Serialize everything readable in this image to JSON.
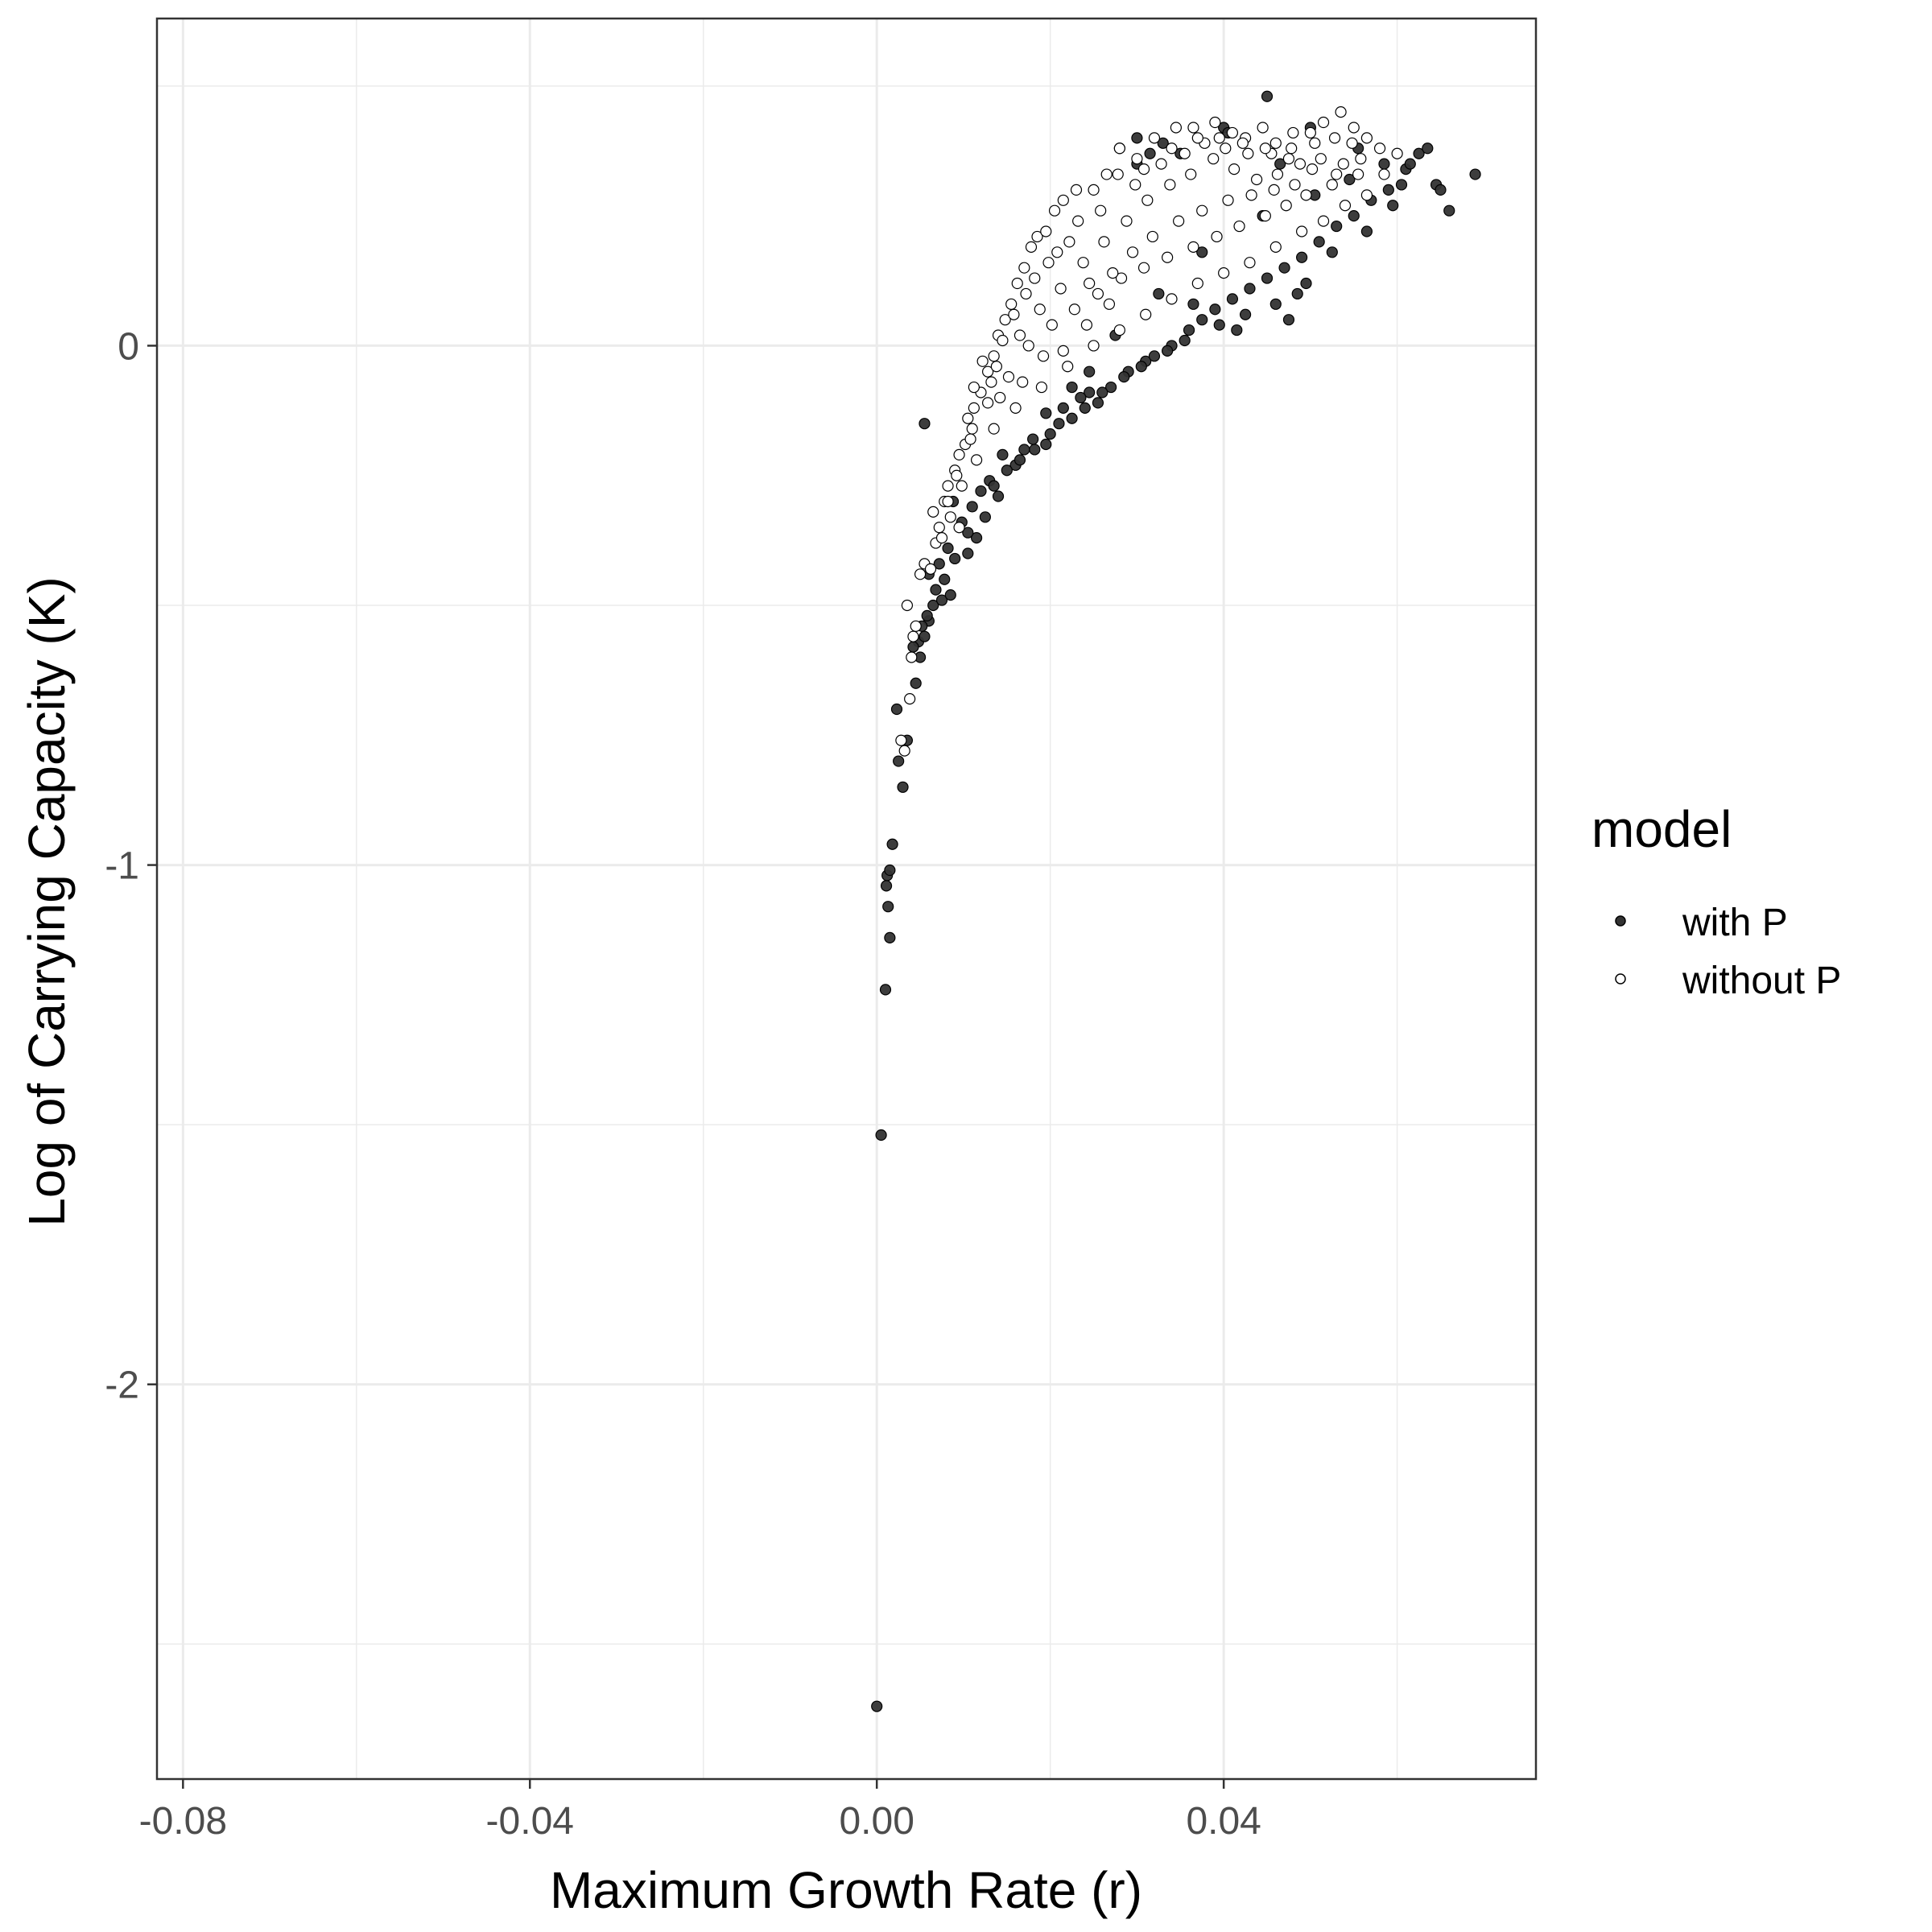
{
  "chart_data": {
    "type": "scatter",
    "title": "",
    "xlabel": "Maximum Growth Rate (r)",
    "ylabel": "Log of Carrying Capacity (K)",
    "xlim": [
      -0.083,
      0.076
    ],
    "ylim": [
      -2.76,
      0.63
    ],
    "x_ticks": [
      -0.08,
      -0.04,
      0.0,
      0.04
    ],
    "x_tick_labels": [
      "-0.08",
      "-0.04",
      "0.00",
      "0.04"
    ],
    "y_ticks": [
      0,
      -1,
      -2
    ],
    "y_tick_labels": [
      "0",
      "-1",
      "-2"
    ],
    "grid": true,
    "legend_position": "right",
    "legend": {
      "title": "model",
      "entries": [
        "with P",
        "without P"
      ]
    },
    "colors": {
      "with P": "#333333",
      "without P": "#ffffff",
      "outline": "#000000",
      "grid": "#ebebeb",
      "panel_border": "#333333"
    },
    "series": [
      {
        "name": "with P",
        "points": [
          [
            0.0,
            -2.62
          ],
          [
            0.0005,
            -1.52
          ],
          [
            0.001,
            -1.24
          ],
          [
            0.0015,
            -1.14
          ],
          [
            0.0013,
            -1.08
          ],
          [
            0.0011,
            -1.04
          ],
          [
            0.0012,
            -1.02
          ],
          [
            0.0015,
            -1.01
          ],
          [
            0.0018,
            -0.96
          ],
          [
            0.003,
            -0.85
          ],
          [
            0.0025,
            -0.8
          ],
          [
            0.0035,
            -0.76
          ],
          [
            0.0023,
            -0.7
          ],
          [
            0.0045,
            -0.65
          ],
          [
            0.005,
            -0.6
          ],
          [
            0.0048,
            -0.57
          ],
          [
            0.0055,
            -0.56
          ],
          [
            0.006,
            -0.53
          ],
          [
            0.0065,
            -0.5
          ],
          [
            0.0075,
            -0.49
          ],
          [
            0.0085,
            -0.48
          ],
          [
            0.006,
            -0.44
          ],
          [
            0.0072,
            -0.42
          ],
          [
            0.009,
            -0.41
          ],
          [
            0.0105,
            -0.4
          ],
          [
            0.0115,
            -0.37
          ],
          [
            0.0098,
            -0.34
          ],
          [
            0.0125,
            -0.33
          ],
          [
            0.0088,
            -0.3
          ],
          [
            0.014,
            -0.29
          ],
          [
            0.016,
            -0.23
          ],
          [
            0.0182,
            -0.2
          ],
          [
            0.0195,
            -0.19
          ],
          [
            0.0055,
            -0.15
          ],
          [
            0.021,
            -0.15
          ],
          [
            0.0225,
            -0.14
          ],
          [
            0.024,
            -0.12
          ],
          [
            0.0255,
            -0.11
          ],
          [
            0.0245,
            -0.09
          ],
          [
            0.027,
            -0.08
          ],
          [
            0.029,
            -0.05
          ],
          [
            0.031,
            -0.03
          ],
          [
            0.032,
            -0.02
          ],
          [
            0.034,
            0.0
          ],
          [
            0.036,
            0.03
          ],
          [
            0.0375,
            0.05
          ],
          [
            0.039,
            0.07
          ],
          [
            0.041,
            0.09
          ],
          [
            0.043,
            0.11
          ],
          [
            0.045,
            0.13
          ],
          [
            0.047,
            0.15
          ],
          [
            0.049,
            0.17
          ],
          [
            0.051,
            0.2
          ],
          [
            0.053,
            0.23
          ],
          [
            0.055,
            0.25
          ],
          [
            0.057,
            0.28
          ],
          [
            0.059,
            0.3
          ],
          [
            0.061,
            0.34
          ],
          [
            0.0625,
            0.37
          ],
          [
            0.0645,
            0.31
          ],
          [
            0.066,
            0.26
          ],
          [
            0.069,
            0.33
          ],
          [
            0.0635,
            0.38
          ],
          [
            0.065,
            0.3
          ],
          [
            0.045,
            0.48
          ],
          [
            0.04,
            0.42
          ],
          [
            0.035,
            0.37
          ],
          [
            0.03,
            0.35
          ],
          [
            0.028,
            0.38
          ],
          [
            0.03,
            0.4
          ],
          [
            0.033,
            0.39
          ],
          [
            0.0315,
            0.37
          ],
          [
            0.0405,
            0.41
          ],
          [
            0.0465,
            0.35
          ],
          [
            0.05,
            0.42
          ],
          [
            0.0555,
            0.38
          ],
          [
            0.0585,
            0.35
          ],
          [
            0.0605,
            0.31
          ],
          [
            0.0565,
            0.22
          ],
          [
            0.0525,
            0.18
          ],
          [
            0.0485,
            0.1
          ],
          [
            0.046,
            0.08
          ],
          [
            0.0425,
            0.06
          ],
          [
            0.0395,
            0.04
          ],
          [
            0.0355,
            0.01
          ],
          [
            0.0335,
            -0.01
          ],
          [
            0.0305,
            -0.04
          ],
          [
            0.0285,
            -0.06
          ],
          [
            0.026,
            -0.09
          ],
          [
            0.0235,
            -0.1
          ],
          [
            0.0215,
            -0.12
          ],
          [
            0.02,
            -0.17
          ],
          [
            0.018,
            -0.18
          ],
          [
            0.0165,
            -0.22
          ],
          [
            0.015,
            -0.24
          ],
          [
            0.013,
            -0.26
          ],
          [
            0.012,
            -0.28
          ],
          [
            0.011,
            -0.31
          ],
          [
            0.0135,
            -0.27
          ],
          [
            0.0195,
            -0.13
          ],
          [
            0.0275,
            0.02
          ],
          [
            0.0325,
            0.1
          ],
          [
            0.0375,
            0.18
          ],
          [
            0.0445,
            0.25
          ],
          [
            0.0505,
            0.29
          ],
          [
            0.0545,
            0.32
          ],
          [
            0.0595,
            0.27
          ],
          [
            0.0615,
            0.35
          ],
          [
            0.0495,
            0.12
          ],
          [
            0.0475,
            0.05
          ],
          [
            0.0415,
            0.03
          ],
          [
            0.0365,
            0.08
          ],
          [
            0.0245,
            -0.05
          ],
          [
            0.0225,
            -0.08
          ],
          [
            0.017,
            -0.2
          ],
          [
            0.0145,
            -0.21
          ],
          [
            0.0105,
            -0.36
          ],
          [
            0.0082,
            -0.39
          ],
          [
            0.0078,
            -0.45
          ],
          [
            0.0068,
            -0.47
          ],
          [
            0.0058,
            -0.52
          ],
          [
            0.0052,
            -0.54
          ],
          [
            0.0042,
            -0.58
          ]
        ]
      },
      {
        "name": "without P",
        "points": [
          [
            0.0028,
            -0.76
          ],
          [
            0.0032,
            -0.78
          ],
          [
            0.0038,
            -0.68
          ],
          [
            0.004,
            -0.6
          ],
          [
            0.0042,
            -0.56
          ],
          [
            0.0045,
            -0.54
          ],
          [
            0.0035,
            -0.5
          ],
          [
            0.005,
            -0.44
          ],
          [
            0.0055,
            -0.42
          ],
          [
            0.0062,
            -0.43
          ],
          [
            0.0068,
            -0.38
          ],
          [
            0.0072,
            -0.35
          ],
          [
            0.0065,
            -0.32
          ],
          [
            0.0078,
            -0.3
          ],
          [
            0.0082,
            -0.27
          ],
          [
            0.009,
            -0.24
          ],
          [
            0.0095,
            -0.21
          ],
          [
            0.0102,
            -0.19
          ],
          [
            0.011,
            -0.16
          ],
          [
            0.0112,
            -0.12
          ],
          [
            0.012,
            -0.09
          ],
          [
            0.0128,
            -0.05
          ],
          [
            0.0135,
            -0.02
          ],
          [
            0.014,
            0.02
          ],
          [
            0.0148,
            0.05
          ],
          [
            0.0155,
            0.08
          ],
          [
            0.0162,
            0.12
          ],
          [
            0.017,
            0.15
          ],
          [
            0.0178,
            0.19
          ],
          [
            0.0185,
            0.21
          ],
          [
            0.0195,
            0.22
          ],
          [
            0.0205,
            0.26
          ],
          [
            0.0215,
            0.28
          ],
          [
            0.023,
            0.3
          ],
          [
            0.025,
            0.3
          ],
          [
            0.0265,
            0.33
          ],
          [
            0.028,
            0.38
          ],
          [
            0.03,
            0.36
          ],
          [
            0.032,
            0.4
          ],
          [
            0.0345,
            0.42
          ],
          [
            0.0365,
            0.42
          ],
          [
            0.039,
            0.43
          ],
          [
            0.041,
            0.41
          ],
          [
            0.0425,
            0.4
          ],
          [
            0.0445,
            0.42
          ],
          [
            0.046,
            0.39
          ],
          [
            0.048,
            0.41
          ],
          [
            0.05,
            0.41
          ],
          [
            0.0515,
            0.43
          ],
          [
            0.0535,
            0.45
          ],
          [
            0.055,
            0.42
          ],
          [
            0.0565,
            0.4
          ],
          [
            0.058,
            0.38
          ],
          [
            0.06,
            0.37
          ],
          [
            0.0585,
            0.33
          ],
          [
            0.0565,
            0.29
          ],
          [
            0.054,
            0.27
          ],
          [
            0.0515,
            0.24
          ],
          [
            0.049,
            0.22
          ],
          [
            0.046,
            0.19
          ],
          [
            0.043,
            0.16
          ],
          [
            0.04,
            0.14
          ],
          [
            0.037,
            0.12
          ],
          [
            0.034,
            0.09
          ],
          [
            0.031,
            0.06
          ],
          [
            0.028,
            0.03
          ],
          [
            0.025,
            0.0
          ],
          [
            0.022,
            -0.04
          ],
          [
            0.019,
            -0.08
          ],
          [
            0.016,
            -0.12
          ],
          [
            0.0135,
            -0.16
          ],
          [
            0.0115,
            -0.22
          ],
          [
            0.0098,
            -0.27
          ],
          [
            0.0085,
            -0.33
          ],
          [
            0.0075,
            -0.37
          ],
          [
            0.0112,
            -0.08
          ],
          [
            0.0138,
            -0.04
          ],
          [
            0.0165,
            0.02
          ],
          [
            0.0188,
            0.07
          ],
          [
            0.0212,
            0.11
          ],
          [
            0.0238,
            0.16
          ],
          [
            0.0262,
            0.2
          ],
          [
            0.0288,
            0.24
          ],
          [
            0.0312,
            0.28
          ],
          [
            0.0338,
            0.31
          ],
          [
            0.0362,
            0.33
          ],
          [
            0.0388,
            0.36
          ],
          [
            0.0412,
            0.34
          ],
          [
            0.0438,
            0.32
          ],
          [
            0.0462,
            0.33
          ],
          [
            0.0488,
            0.35
          ],
          [
            0.0512,
            0.36
          ],
          [
            0.0538,
            0.35
          ],
          [
            0.0558,
            0.36
          ],
          [
            0.0525,
            0.31
          ],
          [
            0.0495,
            0.29
          ],
          [
            0.0472,
            0.27
          ],
          [
            0.0448,
            0.25
          ],
          [
            0.0418,
            0.23
          ],
          [
            0.0392,
            0.21
          ],
          [
            0.0365,
            0.19
          ],
          [
            0.0335,
            0.17
          ],
          [
            0.0308,
            0.15
          ],
          [
            0.0282,
            0.13
          ],
          [
            0.0255,
            0.1
          ],
          [
            0.0228,
            0.07
          ],
          [
            0.0202,
            0.04
          ],
          [
            0.0175,
            0.0
          ],
          [
            0.0152,
            -0.06
          ],
          [
            0.0128,
            -0.11
          ],
          [
            0.0105,
            -0.14
          ],
          [
            0.0258,
            0.26
          ],
          [
            0.0298,
            0.31
          ],
          [
            0.0328,
            0.35
          ],
          [
            0.0355,
            0.37
          ],
          [
            0.0378,
            0.39
          ],
          [
            0.0402,
            0.38
          ],
          [
            0.0428,
            0.37
          ],
          [
            0.0455,
            0.37
          ],
          [
            0.0478,
            0.38
          ],
          [
            0.0505,
            0.39
          ],
          [
            0.0528,
            0.4
          ],
          [
            0.0548,
            0.39
          ],
          [
            0.0222,
            0.2
          ],
          [
            0.0198,
            0.16
          ],
          [
            0.0172,
            0.1
          ],
          [
            0.0145,
            0.01
          ],
          [
            0.0122,
            -0.03
          ],
          [
            0.0318,
            0.21
          ],
          [
            0.0348,
            0.24
          ],
          [
            0.0375,
            0.26
          ],
          [
            0.0405,
            0.28
          ],
          [
            0.0432,
            0.29
          ],
          [
            0.0458,
            0.3
          ],
          [
            0.0482,
            0.31
          ],
          [
            0.0268,
            0.08
          ],
          [
            0.0242,
            0.04
          ],
          [
            0.0215,
            -0.01
          ],
          [
            0.0192,
            -0.02
          ],
          [
            0.0168,
            -0.07
          ],
          [
            0.0142,
            -0.1
          ],
          [
            0.0295,
            0.18
          ],
          [
            0.0272,
            0.14
          ],
          [
            0.0245,
            0.12
          ],
          [
            0.0278,
            0.33
          ],
          [
            0.0308,
            0.34
          ],
          [
            0.034,
            0.38
          ],
          [
            0.037,
            0.4
          ],
          [
            0.0395,
            0.4
          ],
          [
            0.0422,
            0.39
          ],
          [
            0.0448,
            0.38
          ],
          [
            0.0475,
            0.36
          ],
          [
            0.0502,
            0.34
          ],
          [
            0.053,
            0.33
          ],
          [
            0.0555,
            0.33
          ],
          [
            0.0232,
            0.24
          ],
          [
            0.0208,
            0.18
          ],
          [
            0.0182,
            0.13
          ],
          [
            0.0158,
            0.06
          ],
          [
            0.0132,
            -0.07
          ],
          [
            0.0108,
            -0.18
          ],
          [
            0.0092,
            -0.25
          ],
          [
            0.0082,
            -0.3
          ],
          [
            0.0095,
            -0.35
          ]
        ]
      }
    ]
  }
}
